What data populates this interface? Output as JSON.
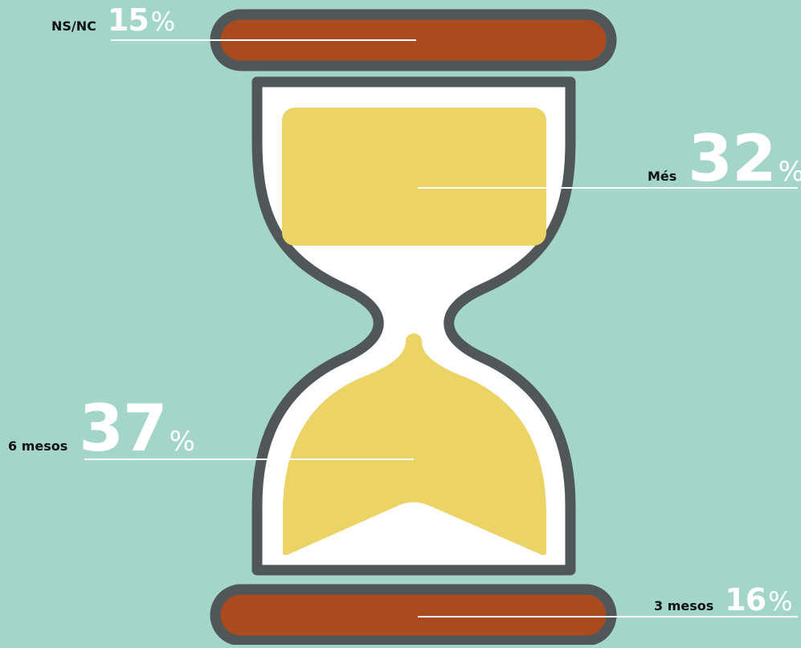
{
  "chart_data": {
    "type": "pie",
    "title": "",
    "unit": "%",
    "categories": [
      "NS/NC",
      "Més",
      "6 mesos",
      "3 mesos"
    ],
    "values": [
      15,
      32,
      37,
      16
    ]
  },
  "colors": {
    "background": "#a3d5c9",
    "outline": "#515759",
    "glass": "#ffffff",
    "sand": "#ebd366",
    "plate": "#a94b1f",
    "label_line": "#ffffff",
    "category_text": "#111111",
    "value_text": "#ffffff"
  }
}
